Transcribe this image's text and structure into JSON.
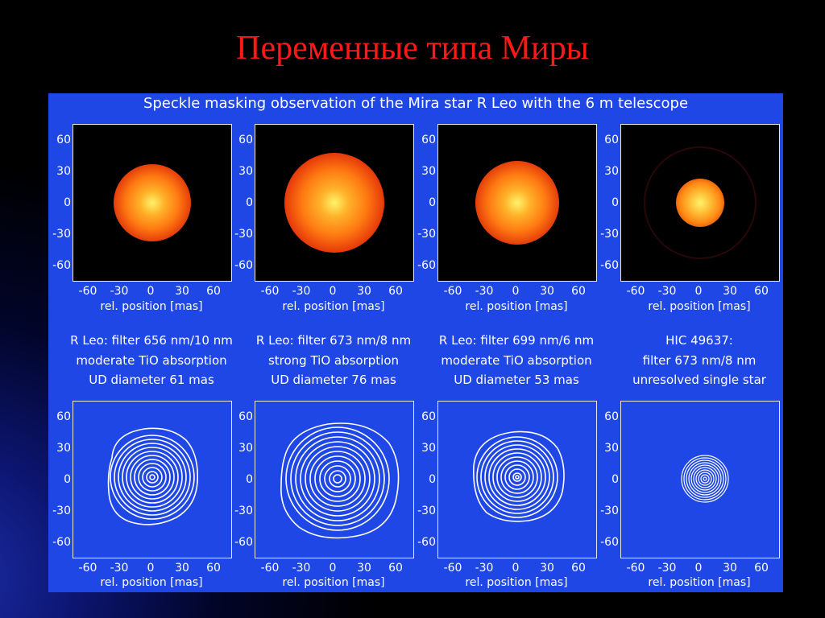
{
  "slide_title": "Переменные типа Миры",
  "figure": {
    "caption": "Speckle masking observation of the Mira star R Leo with the 6 m telescope",
    "axis_ticks": [
      "60",
      "30",
      "0",
      "-30",
      "-60"
    ],
    "x_ticks": [
      "-60",
      "-30",
      "0",
      "30",
      "60"
    ],
    "xlabel": "rel. position [mas]",
    "columns": [
      {
        "line1": "R Leo: filter 656 nm/10 nm",
        "line2": "moderate TiO absorption",
        "line3": "UD diameter 61 mas"
      },
      {
        "line1": "R Leo: filter 673 nm/8 nm",
        "line2": "strong TiO absorption",
        "line3": "UD diameter 76 mas"
      },
      {
        "line1": "R Leo: filter 699 nm/6 nm",
        "line2": "moderate TiO absorption",
        "line3": "UD diameter 53 mas"
      },
      {
        "line1": "HIC 49637:",
        "line2": "filter 673 nm/8 nm",
        "line3": "unresolved single star"
      }
    ]
  },
  "colors": {
    "figure_bg": "#1f47e6",
    "title": "#ff1818",
    "star_core": "#fff36a",
    "star_mid": "#ff7a12",
    "star_edge": "#b0100a"
  }
}
